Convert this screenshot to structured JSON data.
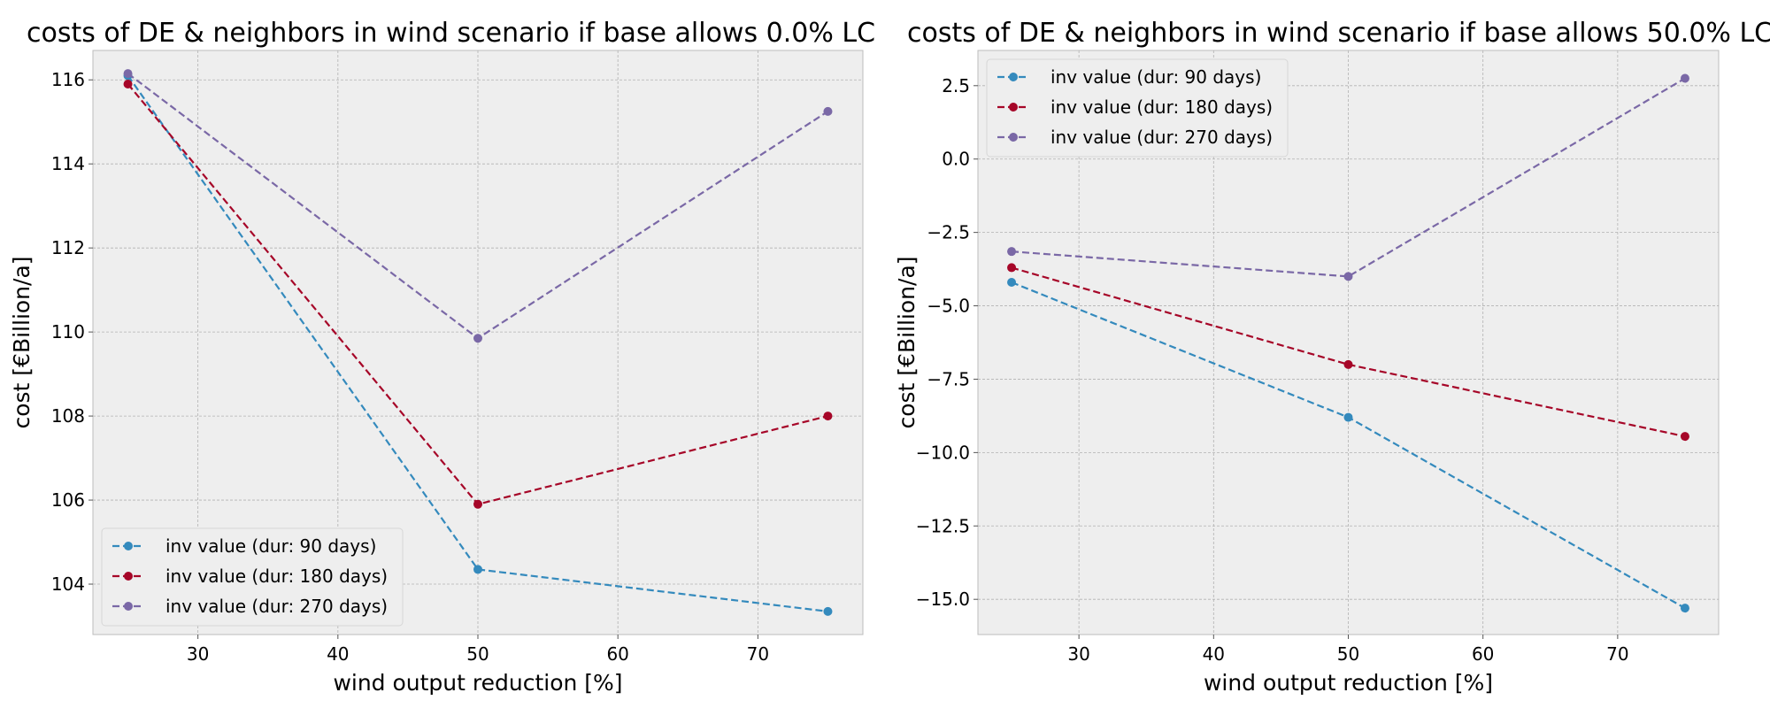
{
  "colors": {
    "series_90": "#348abd",
    "series_180": "#a60628",
    "series_270": "#7a68a6",
    "plot_background": "#eeeeee",
    "grid": "#b2b2b2"
  },
  "chart_data": [
    {
      "type": "line",
      "title": "costs of DE & neighbors in wind scenario if base allows 0.0% LC",
      "xlabel": "wind output reduction [%]",
      "ylabel": "cost [€Billion/a]",
      "x": [
        25,
        50,
        75
      ],
      "xlim": [
        22.5,
        77.5
      ],
      "ylim": [
        102.8,
        116.7
      ],
      "xticks": [
        30,
        40,
        50,
        60,
        70
      ],
      "yticks": [
        104,
        106,
        108,
        110,
        112,
        114,
        116
      ],
      "ytick_labels": [
        "104",
        "106",
        "108",
        "110",
        "112",
        "114",
        "116"
      ],
      "grid": true,
      "legend_position": "lower-left",
      "line_style": "dashed",
      "marker": "circle",
      "series": [
        {
          "name": "inv value (dur: 90 days)",
          "color": "#348abd",
          "values": [
            116.1,
            104.35,
            103.35
          ]
        },
        {
          "name": "inv value (dur: 180 days)",
          "color": "#a60628",
          "values": [
            115.9,
            105.9,
            108.0
          ]
        },
        {
          "name": "inv value (dur: 270 days)",
          "color": "#7a68a6",
          "values": [
            116.15,
            109.85,
            115.25
          ]
        }
      ]
    },
    {
      "type": "line",
      "title": "costs of DE & neighbors in wind scenario if base allows 50.0% LC",
      "xlabel": "wind output reduction [%]",
      "ylabel": "cost [€Billion/a]",
      "x": [
        25,
        50,
        75
      ],
      "xlim": [
        22.5,
        77.5
      ],
      "ylim": [
        -16.2,
        3.7
      ],
      "xticks": [
        30,
        40,
        50,
        60,
        70
      ],
      "yticks": [
        -15.0,
        -12.5,
        -10.0,
        -7.5,
        -5.0,
        -2.5,
        0.0,
        2.5
      ],
      "ytick_labels": [
        "−15.0",
        "−12.5",
        "−10.0",
        "−7.5",
        "−5.0",
        "−2.5",
        "0.0",
        "2.5"
      ],
      "grid": true,
      "legend_position": "upper-left",
      "line_style": "dashed",
      "marker": "circle",
      "series": [
        {
          "name": "inv value (dur: 90 days)",
          "color": "#348abd",
          "values": [
            -4.2,
            -8.8,
            -15.3
          ]
        },
        {
          "name": "inv value (dur: 180 days)",
          "color": "#a60628",
          "values": [
            -3.7,
            -7.0,
            -9.45
          ]
        },
        {
          "name": "inv value (dur: 270 days)",
          "color": "#7a68a6",
          "values": [
            -3.15,
            -4.0,
            2.75
          ]
        }
      ]
    }
  ]
}
